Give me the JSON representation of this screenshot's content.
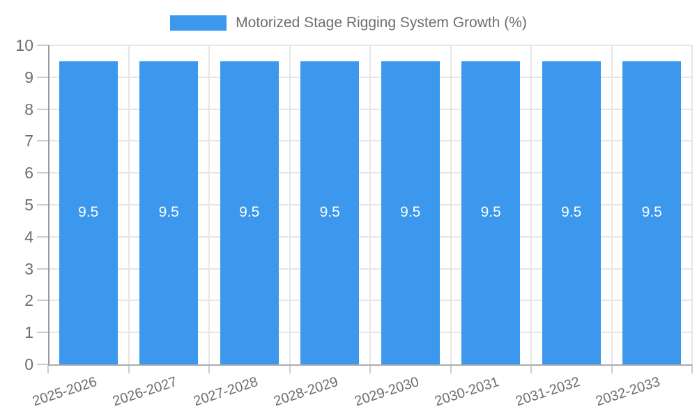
{
  "legend": {
    "label": "Motorized Stage Rigging System Growth (%)"
  },
  "chart_data": {
    "type": "bar",
    "title": "Motorized Stage Rigging System Growth (%)",
    "categories": [
      "2025-2026",
      "2026-2027",
      "2027-2028",
      "2028-2029",
      "2029-2030",
      "2030-2031",
      "2031-2032",
      "2032-2033"
    ],
    "values": [
      9.5,
      9.5,
      9.5,
      9.5,
      9.5,
      9.5,
      9.5,
      9.5
    ],
    "bar_value_labels": [
      "9.5",
      "9.5",
      "9.5",
      "9.5",
      "9.5",
      "9.5",
      "9.5",
      "9.5"
    ],
    "xlabel": "",
    "ylabel": "",
    "ylim": [
      0,
      10
    ],
    "yticks": [
      0,
      1,
      2,
      3,
      4,
      5,
      6,
      7,
      8,
      9,
      10
    ],
    "grid": true,
    "legend_position": "top-center",
    "colors": {
      "bar": "#3b98ec",
      "bar_label_text": "#ffffff",
      "axis_text": "#6e6e6e",
      "legend_text": "#6e6e6e",
      "gridline": "#e6e6e6",
      "axis_line": "#9a9a9a",
      "baseline": "#ababab",
      "tick": "#cccccc",
      "background": "#ffffff"
    }
  }
}
